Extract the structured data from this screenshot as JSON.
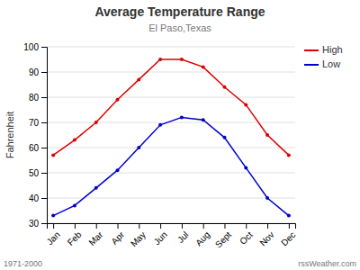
{
  "chart_data": {
    "type": "line",
    "title": "Average Temperature Range",
    "subtitle": "El Paso,Texas",
    "y_label": "Fahrenheit",
    "annotations": [
      "1971-2000",
      "rssWeather.com"
    ],
    "categories": [
      "Jan",
      "Feb",
      "Mar",
      "Apr",
      "May",
      "Jun",
      "Jul",
      "Aug",
      "Sept",
      "Oct",
      "Nov",
      "Dec"
    ],
    "series": [
      {
        "name": "High",
        "color": "#dd0000",
        "marker": "point",
        "values": [
          57,
          63,
          70,
          79,
          87,
          95,
          95,
          92,
          84,
          77,
          65,
          57
        ]
      },
      {
        "name": "Low",
        "color": "#0000cc",
        "marker": "point",
        "values": [
          33,
          37,
          44,
          51,
          60,
          69,
          72,
          71,
          64,
          52,
          40,
          33
        ]
      }
    ],
    "ylim": [
      30,
      100
    ],
    "yticks": [
      30,
      40,
      50,
      60,
      70,
      80,
      90,
      100
    ],
    "grid": true,
    "legend": "upper right"
  }
}
